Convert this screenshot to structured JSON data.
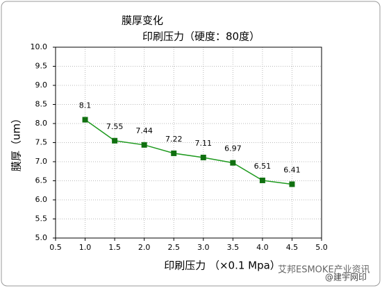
{
  "chart_data": {
    "type": "line",
    "title": "膜厚变化",
    "subtitle": "印刷压力（硬度：80度）",
    "x_label": "印刷压力 （×0.1 Mpa）",
    "y_label": "膜厚（um）",
    "x": [
      1.0,
      1.5,
      2.0,
      2.5,
      3.0,
      3.5,
      4.0,
      4.5
    ],
    "series": [
      {
        "name": "膜厚",
        "color": "#1e9a1e",
        "marker_color": "#107010",
        "values": [
          8.1,
          7.55,
          7.44,
          7.22,
          7.11,
          6.97,
          6.51,
          6.41
        ]
      }
    ],
    "xlim": [
      0.5,
      5.0
    ],
    "xticks": [
      0.5,
      {
        "value": 1,
        "label": "1.0"
      },
      1.5,
      {
        "value": 2,
        "label": "2.0"
      },
      2.5,
      {
        "value": 3,
        "label": "3.0"
      },
      3.5,
      {
        "value": 4,
        "label": "4.0"
      },
      4.5,
      {
        "value": 5,
        "label": "5.0"
      }
    ],
    "ylim": [
      5.0,
      10.0
    ],
    "yticks": [
      {
        "value": 5,
        "label": "5.0"
      },
      5.5,
      {
        "value": 6,
        "label": "6.0"
      },
      6.5,
      {
        "value": 7,
        "label": "7.0"
      },
      7.5,
      {
        "value": 8,
        "label": "8.0"
      },
      8.5,
      {
        "value": 9,
        "label": "9.0"
      },
      9.5,
      {
        "value": 10,
        "label": "10.0"
      }
    ],
    "grid": true,
    "annotations": [
      "艾邦ESMOKE产业资讯",
      "@建宇网印"
    ]
  }
}
